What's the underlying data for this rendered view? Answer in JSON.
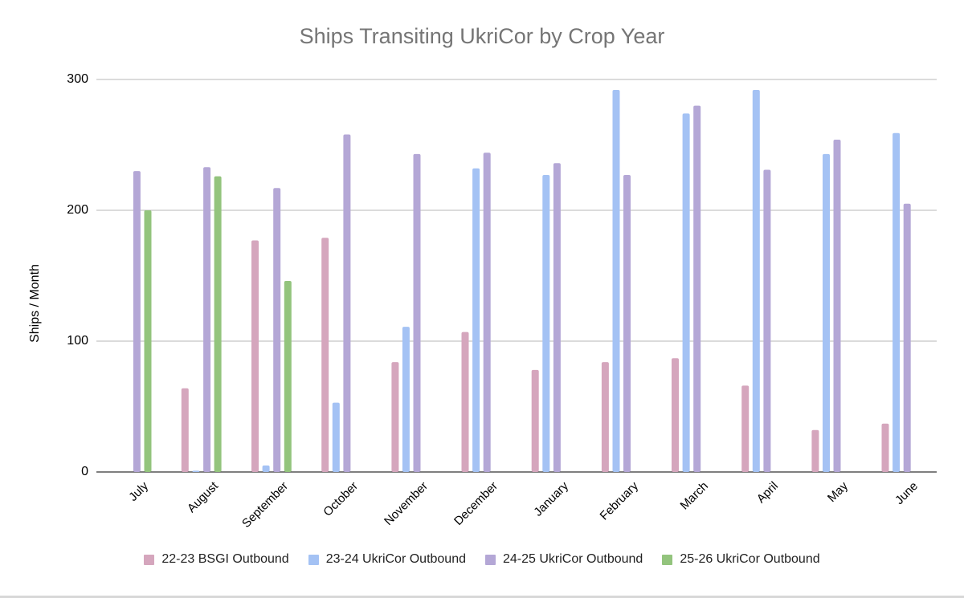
{
  "chart_data": {
    "type": "bar",
    "title": "Ships Transiting UkriCor by Crop Year",
    "xlabel": "",
    "ylabel": "Ships / Month",
    "ylim": [
      0,
      300
    ],
    "yticks": [
      "0",
      "100",
      "200",
      "300"
    ],
    "grid": true,
    "legend_position": "bottom",
    "categories": [
      "July",
      "August",
      "September",
      "October",
      "November",
      "December",
      "January",
      "February",
      "March",
      "April",
      "May",
      "June"
    ],
    "series": [
      {
        "name": "22-23 BSGI Outbound",
        "color": "#d5a6bd",
        "values": [
          0,
          64,
          177,
          179,
          84,
          107,
          78,
          84,
          87,
          66,
          32,
          37
        ]
      },
      {
        "name": "23-24 UkriCor Outbound",
        "color": "#a4c2f4",
        "values": [
          0,
          1,
          5,
          53,
          111,
          232,
          227,
          292,
          274,
          292,
          243,
          259
        ]
      },
      {
        "name": "24-25 UkriCor Outbound",
        "color": "#b4a7d6",
        "values": [
          230,
          233,
          217,
          258,
          243,
          244,
          236,
          227,
          280,
          231,
          254,
          205
        ]
      },
      {
        "name": "25-26 UkriCor Outbound",
        "color": "#93c47d",
        "values": [
          200,
          226,
          146,
          null,
          null,
          null,
          null,
          null,
          null,
          null,
          null,
          null
        ]
      }
    ]
  }
}
